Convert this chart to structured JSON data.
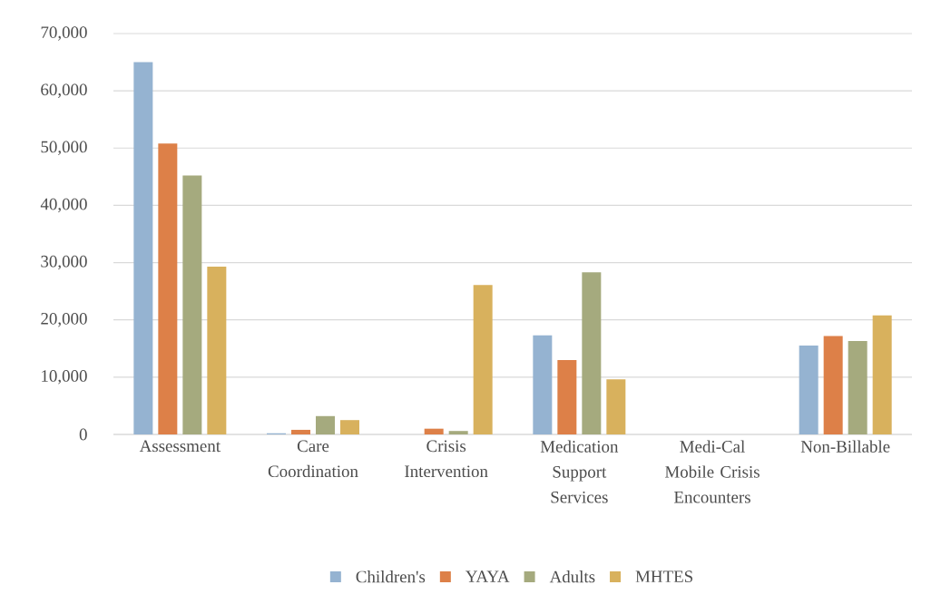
{
  "chart_data": {
    "type": "bar",
    "categories": [
      "Assessment",
      "Care Coordination",
      "Crisis Intervention",
      "Medication Support Services",
      "Medi-Cal Mobile Crisis Encounters",
      "Non-Billable"
    ],
    "series": [
      {
        "name": "Children's",
        "color": "#95b3d1",
        "values": [
          65000,
          200,
          0,
          17300,
          0,
          15500
        ]
      },
      {
        "name": "YAYA",
        "color": "#dd8048",
        "values": [
          50800,
          800,
          1000,
          13000,
          0,
          17200
        ]
      },
      {
        "name": "Adults",
        "color": "#a5aa7e",
        "values": [
          45200,
          3200,
          600,
          28300,
          0,
          16300
        ]
      },
      {
        "name": "MHTES",
        "color": "#d8b15d",
        "values": [
          29300,
          2500,
          26100,
          9600,
          0,
          20800
        ]
      }
    ],
    "ylim": [
      0,
      70000
    ],
    "yticks": [
      {
        "value": 0,
        "label": "0"
      },
      {
        "value": 10000,
        "label": "10,000"
      },
      {
        "value": 20000,
        "label": "20,000"
      },
      {
        "value": 30000,
        "label": "30,000"
      },
      {
        "value": 40000,
        "label": "40,000"
      },
      {
        "value": 50000,
        "label": "50,000"
      },
      {
        "value": 60000,
        "label": "60,000"
      },
      {
        "value": 70000,
        "label": "70,000"
      }
    ],
    "grid": "y",
    "legend": "bottom"
  }
}
